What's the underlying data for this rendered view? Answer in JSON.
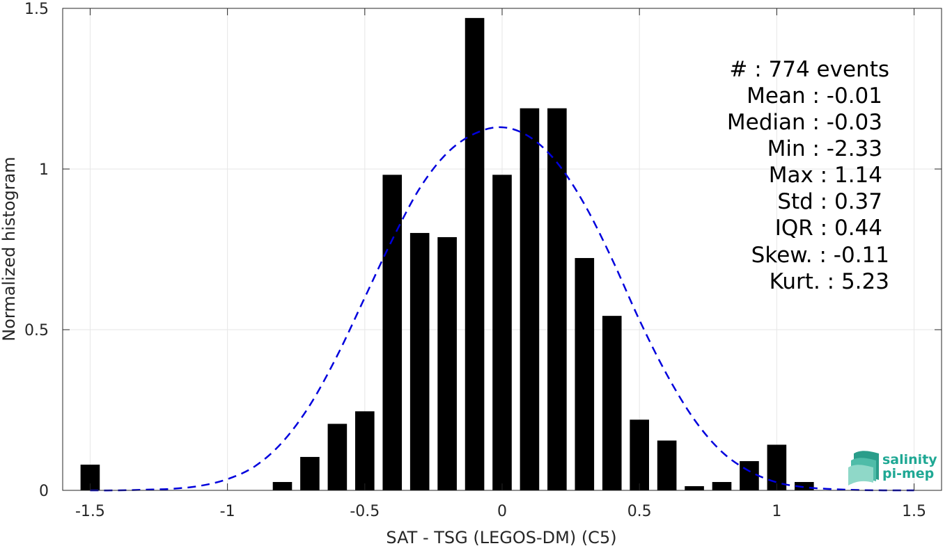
{
  "chart_data": {
    "type": "bar",
    "xlabel": "SAT - TSG (LEGOS-DM) (C5)",
    "ylabel": "Normalized histogram",
    "xlim": [
      -1.6,
      1.6
    ],
    "ylim": [
      0,
      1.5
    ],
    "xticks": [
      -1.5,
      -1,
      -0.5,
      0,
      0.5,
      1,
      1.5
    ],
    "xtick_labels": [
      "-1.5",
      "-1",
      "-0.5",
      "0",
      "0.5",
      "1",
      "1.5"
    ],
    "yticks": [
      0,
      0.5,
      1,
      1.5
    ],
    "ytick_labels": [
      "0",
      "0.5",
      "1",
      "1.5"
    ],
    "grid": true,
    "bar_color": "#000000",
    "bars": {
      "x": [
        -1.5,
        -0.8,
        -0.7,
        -0.6,
        -0.5,
        -0.4,
        -0.3,
        -0.2,
        -0.1,
        0.0,
        0.1,
        0.2,
        0.3,
        0.4,
        0.5,
        0.6,
        0.7,
        0.8,
        0.9,
        1.0,
        1.1
      ],
      "values": [
        0.08,
        0.026,
        0.104,
        0.207,
        0.246,
        0.982,
        0.801,
        0.788,
        1.47,
        0.982,
        1.189,
        1.189,
        0.723,
        0.543,
        0.22,
        0.155,
        0.013,
        0.026,
        0.091,
        0.142,
        0.026
      ]
    },
    "fit_curve": {
      "style": "dashed",
      "color": "#0000dd",
      "x": [
        -1.5,
        -1.4,
        -1.3,
        -1.2,
        -1.1,
        -1.0,
        -0.9,
        -0.8,
        -0.7,
        -0.6,
        -0.5,
        -0.4,
        -0.3,
        -0.2,
        -0.1,
        0.0,
        0.1,
        0.2,
        0.3,
        0.4,
        0.5,
        0.6,
        0.7,
        0.8,
        0.9,
        1.0,
        1.1,
        1.2,
        1.3,
        1.4,
        1.5
      ],
      "y": [
        0.0,
        0.0,
        0.002,
        0.005,
        0.014,
        0.035,
        0.075,
        0.15,
        0.265,
        0.42,
        0.6,
        0.78,
        0.94,
        1.05,
        1.11,
        1.13,
        1.1,
        1.02,
        0.89,
        0.72,
        0.53,
        0.36,
        0.22,
        0.12,
        0.06,
        0.025,
        0.01,
        0.004,
        0.001,
        0.0,
        0.0
      ]
    }
  },
  "stats": {
    "count": "#  : 774 events",
    "mean": "Mean : -0.01",
    "median": "Median : -0.03",
    "min": "Min : -2.33",
    "max": "Max : 1.14",
    "std": "Std : 0.37",
    "iqr": "IQR : 0.44",
    "skew": "Skew. : -0.11",
    "kurt": "Kurt. : 5.23"
  },
  "logo": {
    "line1": "salinity",
    "line2": "pi-mep",
    "color": "#1fa894"
  }
}
